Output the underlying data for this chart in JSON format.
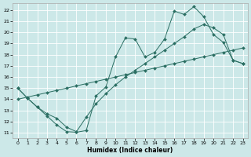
{
  "xlabel": "Humidex (Indice chaleur)",
  "bg_color": "#cce8e8",
  "grid_color": "#ffffff",
  "line_color": "#2a6e62",
  "xlim": [
    -0.5,
    23.5
  ],
  "ylim": [
    10.5,
    22.6
  ],
  "xticks": [
    0,
    1,
    2,
    3,
    4,
    5,
    6,
    7,
    8,
    9,
    10,
    11,
    12,
    13,
    14,
    15,
    16,
    17,
    18,
    19,
    20,
    21,
    22,
    23
  ],
  "yticks": [
    11,
    12,
    13,
    14,
    15,
    16,
    17,
    18,
    19,
    20,
    21,
    22
  ],
  "line1_x": [
    0,
    1,
    2,
    3,
    4,
    5,
    6,
    7,
    8,
    9,
    10,
    11,
    12,
    13,
    14,
    15,
    16,
    17,
    18,
    19,
    20,
    21,
    22,
    23
  ],
  "line1_y": [
    15.0,
    14.1,
    13.3,
    12.5,
    11.7,
    11.1,
    11.05,
    11.2,
    14.3,
    15.1,
    17.8,
    19.5,
    19.4,
    17.8,
    18.2,
    19.4,
    21.9,
    21.6,
    22.3,
    21.4,
    19.8,
    19.1,
    17.5,
    17.2
  ],
  "line2_x": [
    0,
    1,
    2,
    3,
    4,
    5,
    6,
    7,
    8,
    9,
    10,
    11,
    12,
    13,
    14,
    15,
    16,
    17,
    18,
    19,
    20,
    21,
    22,
    23
  ],
  "line2_y": [
    14.0,
    14.2,
    14.4,
    14.6,
    14.8,
    15.0,
    15.2,
    15.4,
    15.6,
    15.8,
    16.0,
    16.2,
    16.4,
    16.6,
    16.8,
    17.0,
    17.2,
    17.4,
    17.6,
    17.8,
    18.0,
    18.2,
    18.4,
    18.6
  ],
  "line3_x": [
    0,
    1,
    2,
    3,
    4,
    5,
    6,
    7,
    8,
    9,
    10,
    11,
    12,
    13,
    14,
    15,
    16,
    17,
    18,
    19,
    20,
    21,
    22,
    23
  ],
  "line3_y": [
    15.0,
    14.1,
    13.3,
    12.7,
    12.3,
    11.5,
    11.1,
    12.4,
    13.6,
    14.5,
    15.3,
    16.0,
    16.6,
    17.2,
    17.8,
    18.4,
    19.0,
    19.6,
    20.3,
    20.7,
    20.4,
    19.8,
    17.5,
    17.2
  ]
}
